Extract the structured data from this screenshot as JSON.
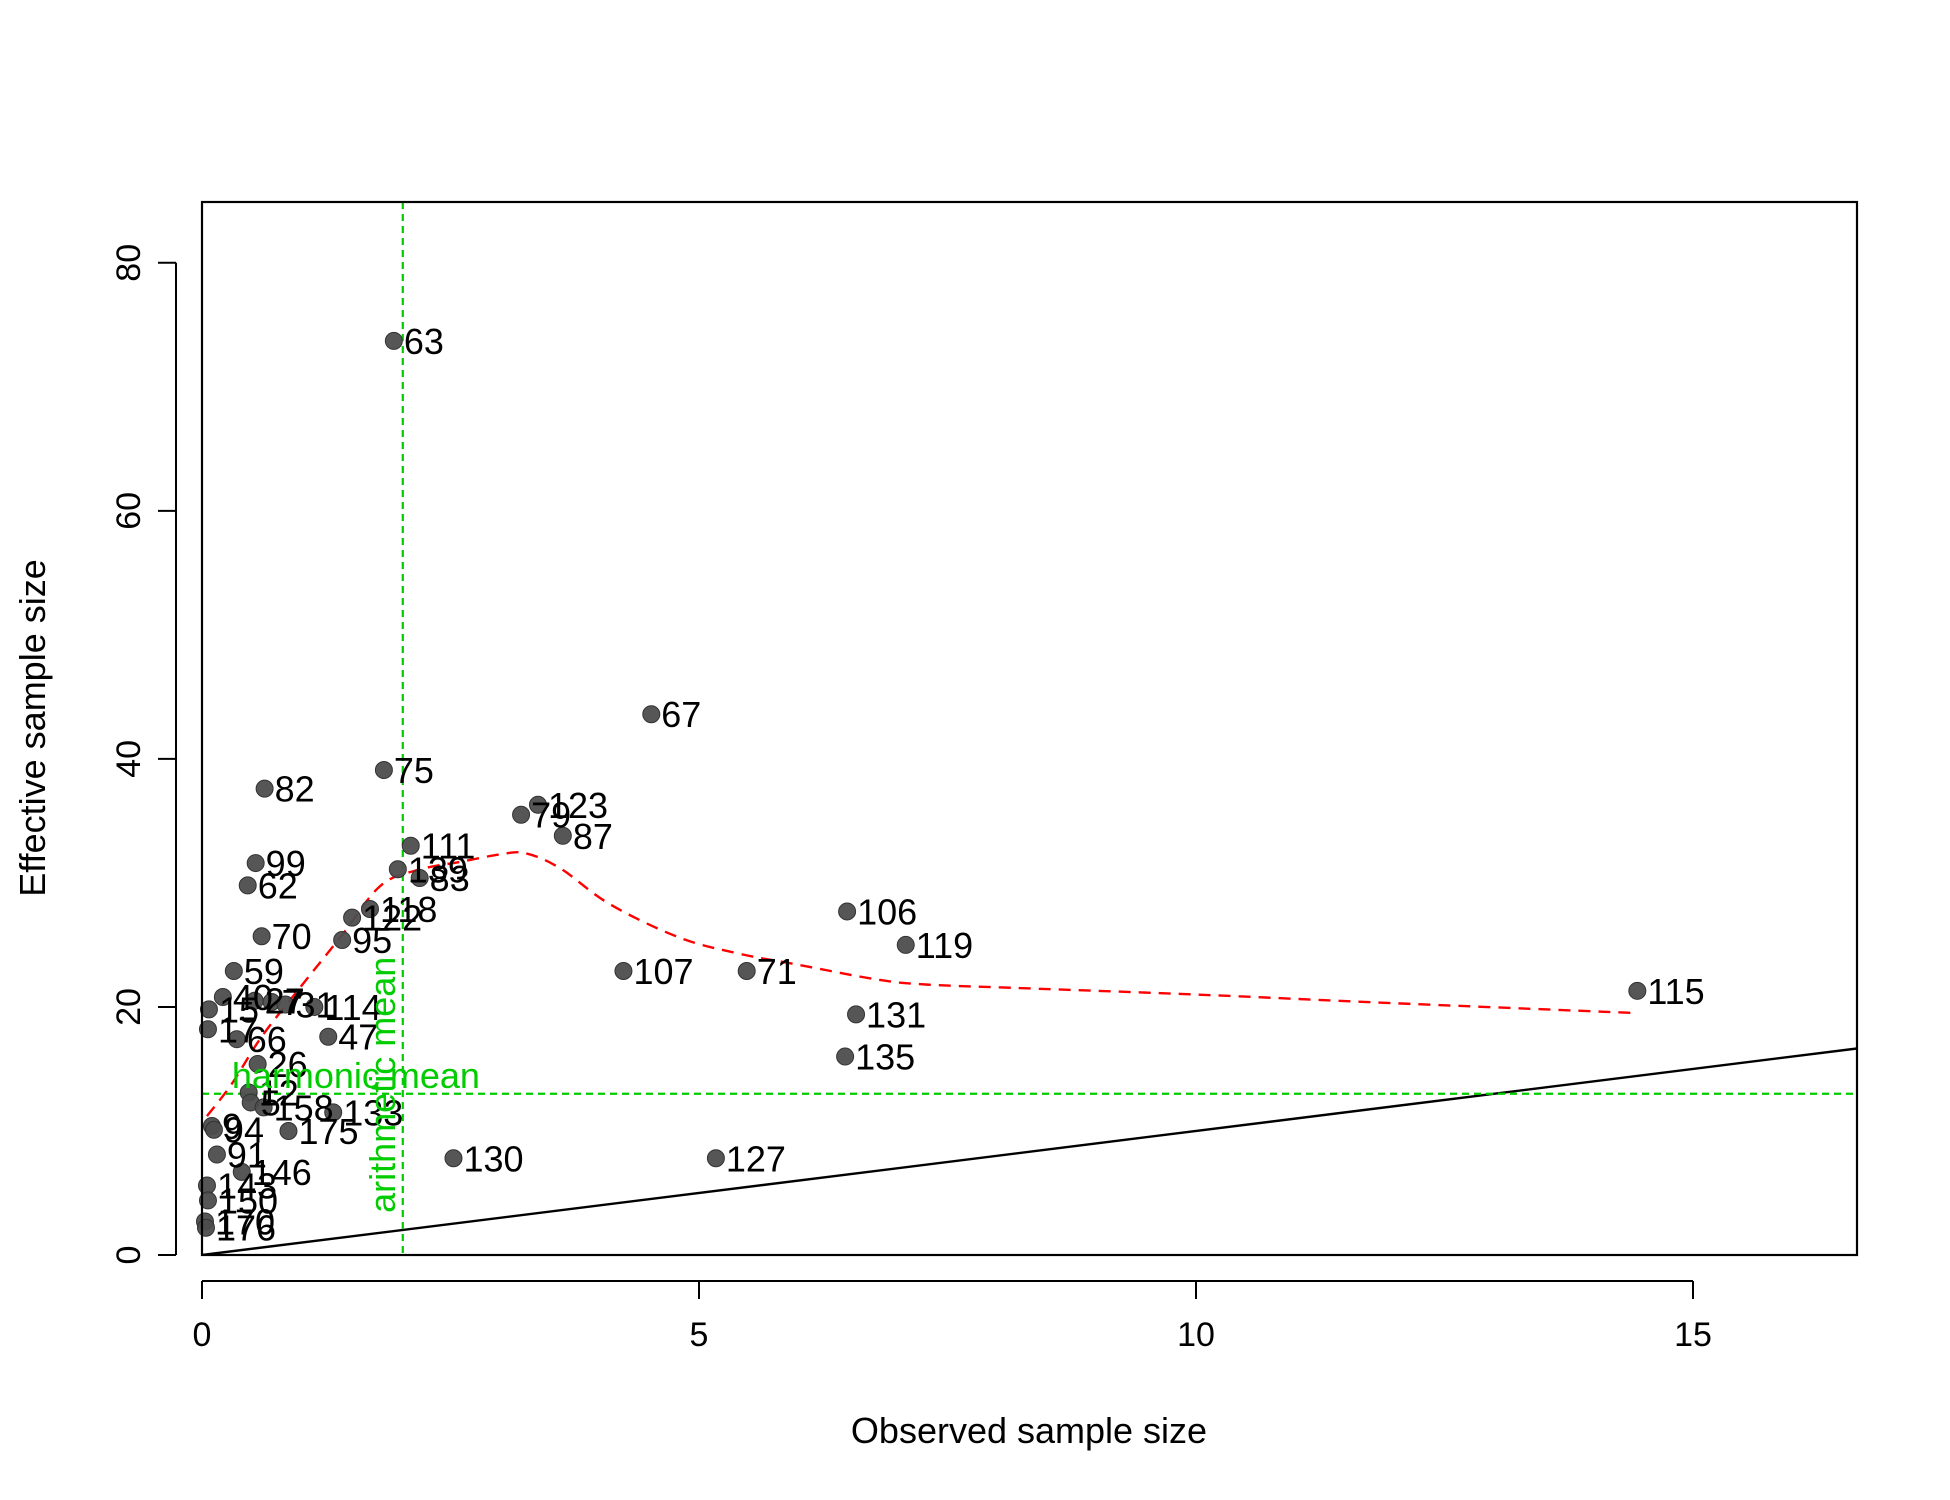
{
  "chart_data": {
    "type": "scatter",
    "title": "",
    "xlabel": "Observed sample size",
    "ylabel": "Effective sample size",
    "xlim": [
      0,
      16.65
    ],
    "ylim": [
      0,
      84.9
    ],
    "x_ticks": [
      0,
      5,
      10,
      15
    ],
    "y_ticks": [
      0,
      20,
      40,
      60,
      80
    ],
    "grid": false,
    "colors": {
      "points": "#4d4d4d",
      "smooth": "#ff0000",
      "reference": "#00cc00",
      "identity": "#000000"
    },
    "points": [
      {
        "label": "63",
        "x": 1.93,
        "y": 73.7
      },
      {
        "label": "67",
        "x": 4.52,
        "y": 43.6
      },
      {
        "label": "75",
        "x": 1.83,
        "y": 39.1
      },
      {
        "label": "82",
        "x": 0.63,
        "y": 37.6
      },
      {
        "label": "123",
        "x": 3.38,
        "y": 36.3
      },
      {
        "label": "79",
        "x": 3.21,
        "y": 35.5
      },
      {
        "label": "87",
        "x": 3.63,
        "y": 33.8
      },
      {
        "label": "111",
        "x": 2.1,
        "y": 33.0
      },
      {
        "label": "99",
        "x": 0.54,
        "y": 31.6
      },
      {
        "label": "139",
        "x": 1.97,
        "y": 31.1
      },
      {
        "label": "83",
        "x": 2.19,
        "y": 30.4
      },
      {
        "label": "62",
        "x": 0.46,
        "y": 29.8
      },
      {
        "label": "118",
        "x": 1.69,
        "y": 27.9
      },
      {
        "label": "106",
        "x": 6.49,
        "y": 27.7
      },
      {
        "label": "122",
        "x": 1.51,
        "y": 27.2
      },
      {
        "label": "70",
        "x": 0.6,
        "y": 25.7
      },
      {
        "label": "95",
        "x": 1.41,
        "y": 25.4
      },
      {
        "label": "119",
        "x": 7.08,
        "y": 25.0
      },
      {
        "label": "59",
        "x": 0.32,
        "y": 22.9
      },
      {
        "label": "107",
        "x": 4.24,
        "y": 22.9
      },
      {
        "label": "71",
        "x": 5.48,
        "y": 22.9
      },
      {
        "label": "115",
        "x": 14.44,
        "y": 21.3
      },
      {
        "label": "40",
        "x": 0.21,
        "y": 20.8
      },
      {
        "label": "27",
        "x": 0.53,
        "y": 20.5
      },
      {
        "label": "7",
        "x": 0.7,
        "y": 20.4
      },
      {
        "label": "31",
        "x": 0.84,
        "y": 20.2
      },
      {
        "label": "114",
        "x": 1.13,
        "y": 20.0
      },
      {
        "label": "15",
        "x": 0.07,
        "y": 19.8
      },
      {
        "label": "131",
        "x": 6.58,
        "y": 19.4
      },
      {
        "label": "17",
        "x": 0.06,
        "y": 18.2
      },
      {
        "label": "47",
        "x": 1.27,
        "y": 17.6
      },
      {
        "label": "66",
        "x": 0.35,
        "y": 17.4
      },
      {
        "label": "135",
        "x": 6.47,
        "y": 16.0
      },
      {
        "label": "26",
        "x": 0.56,
        "y": 15.4
      },
      {
        "label": "12",
        "x": 0.47,
        "y": 13.1
      },
      {
        "label": "5",
        "x": 0.49,
        "y": 12.3
      },
      {
        "label": "158",
        "x": 0.62,
        "y": 11.9
      },
      {
        "label": "133",
        "x": 1.32,
        "y": 11.5
      },
      {
        "label": "9",
        "x": 0.1,
        "y": 10.4
      },
      {
        "label": "94",
        "x": 0.12,
        "y": 10.1
      },
      {
        "label": "175",
        "x": 0.87,
        "y": 10.0
      },
      {
        "label": "91",
        "x": 0.15,
        "y": 8.1
      },
      {
        "label": "130",
        "x": 2.53,
        "y": 7.8
      },
      {
        "label": "127",
        "x": 5.17,
        "y": 7.8
      },
      {
        "label": "146",
        "x": 0.4,
        "y": 6.7
      },
      {
        "label": "143",
        "x": 0.05,
        "y": 5.6
      },
      {
        "label": "150",
        "x": 0.06,
        "y": 4.4
      },
      {
        "label": "170",
        "x": 0.03,
        "y": 2.7
      },
      {
        "label": "176",
        "x": 0.04,
        "y": 2.2
      }
    ],
    "smooth_line": {
      "style": "dashed",
      "x": [
        0.05,
        0.3,
        0.6,
        1.0,
        1.4,
        1.8,
        2.2,
        2.6,
        3.0,
        3.25,
        3.6,
        4.1,
        4.8,
        5.4,
        6.0,
        6.8,
        7.3,
        8.3,
        10.0,
        12.0,
        14.45
      ],
      "y": [
        11.2,
        13.8,
        17.6,
        21.7,
        25.7,
        29.8,
        31.1,
        31.7,
        32.3,
        32.4,
        31.2,
        28.3,
        25.6,
        24.3,
        23.4,
        22.2,
        21.8,
        21.5,
        21.0,
        20.3,
        19.5
      ]
    },
    "identity_line": {
      "slope": 1,
      "intercept": 0
    },
    "reference_lines": [
      {
        "label": "harmonic mean",
        "orientation": "horizontal",
        "value": 13.0
      },
      {
        "label": "arithmetic mean",
        "orientation": "vertical",
        "value": 2.02
      }
    ]
  }
}
